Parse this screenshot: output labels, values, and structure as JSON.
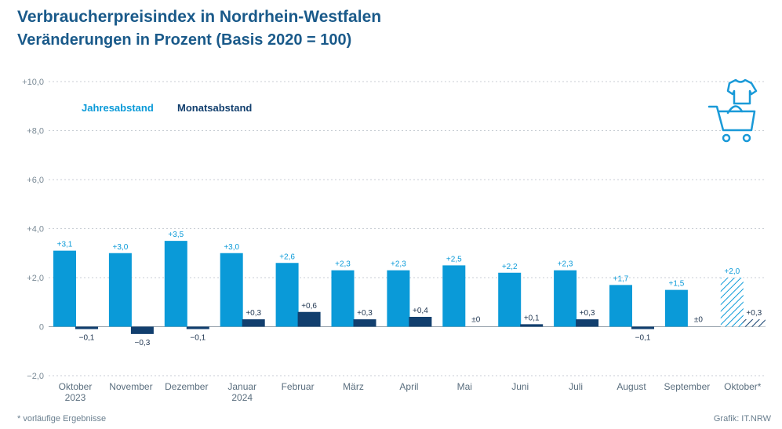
{
  "title": "Verbraucherpreisindex in Nordrhein-Westfalen",
  "subtitle": "Veränderungen in Prozent (Basis 2020 = 100)",
  "footnote": "* vorläufige Ergebnisse",
  "source": "Grafik: IT.NRW",
  "icon": "shopping-cart-with-clothes-icon",
  "colors": {
    "jahres": "#0a9ad8",
    "monats": "#123f6e",
    "grid": "#c8ced4",
    "zero": "#9aa5ae",
    "text": "#1a5a8a"
  },
  "chart_data": {
    "type": "bar",
    "ylim": [
      -2,
      10
    ],
    "yticks": [
      -2,
      0,
      2,
      4,
      6,
      8,
      10
    ],
    "ytick_labels": [
      "−2,0",
      "0",
      "+2,0",
      "+4,0",
      "+6,0",
      "+8,0",
      "+10,0"
    ],
    "grid": true,
    "legend": "top-left",
    "categories": [
      [
        "Oktober",
        "2023"
      ],
      [
        "November"
      ],
      [
        "Dezember"
      ],
      [
        "Januar",
        "2024"
      ],
      [
        "Februar"
      ],
      [
        "März"
      ],
      [
        "April"
      ],
      [
        "Mai"
      ],
      [
        "Juni"
      ],
      [
        "Juli"
      ],
      [
        "August"
      ],
      [
        "September"
      ],
      [
        "Oktober*"
      ]
    ],
    "preliminary_index": 12,
    "series": [
      {
        "name": "Jahresabstand",
        "values": [
          3.1,
          3.0,
          3.5,
          3.0,
          2.6,
          2.3,
          2.3,
          2.5,
          2.2,
          2.3,
          1.7,
          1.5,
          2.0
        ],
        "labels": [
          "+3,1",
          "+3,0",
          "+3,5",
          "+3,0",
          "+2,6",
          "+2,3",
          "+2,3",
          "+2,5",
          "+2,2",
          "+2,3",
          "+1,7",
          "+1,5",
          "+2,0"
        ]
      },
      {
        "name": "Monatsabstand",
        "values": [
          -0.1,
          -0.3,
          -0.1,
          0.3,
          0.6,
          0.3,
          0.4,
          0.0,
          0.1,
          0.3,
          -0.1,
          0.0,
          0.3
        ],
        "labels": [
          "−0,1",
          "−0,3",
          "−0,1",
          "+0,3",
          "+0,6",
          "+0,3",
          "+0,4",
          "±0",
          "+0,1",
          "+0,3",
          "−0,1",
          "±0",
          "+0,3"
        ]
      }
    ]
  }
}
